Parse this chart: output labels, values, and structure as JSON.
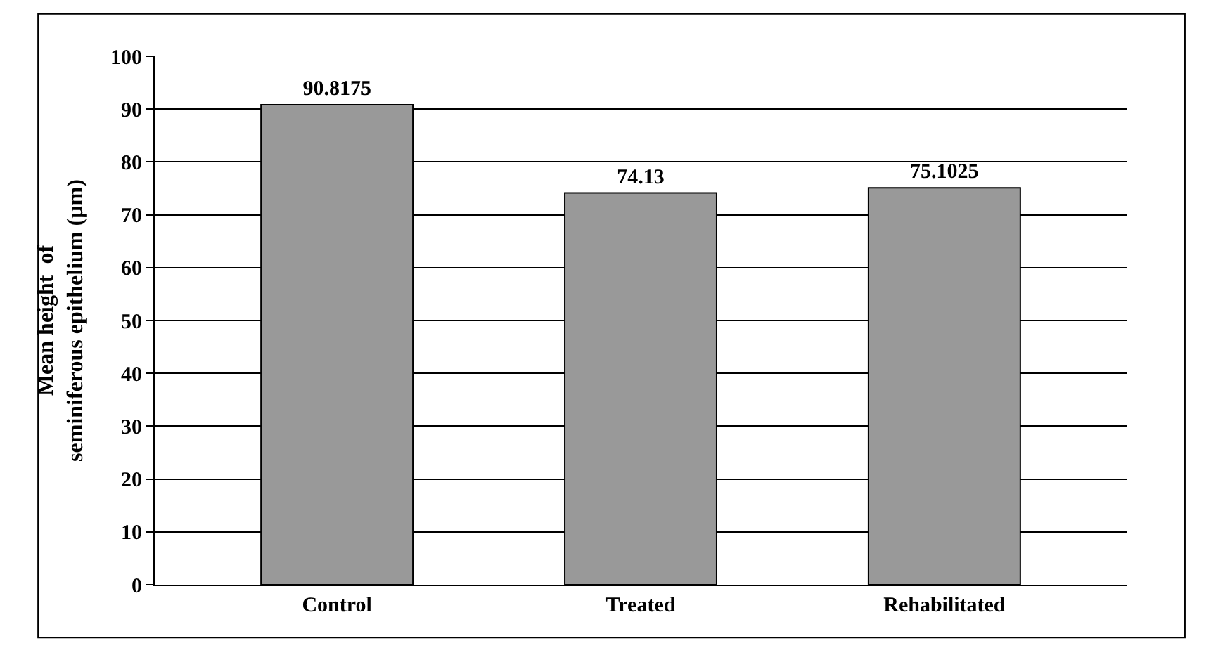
{
  "chart_data": {
    "type": "bar",
    "categories": [
      "Control",
      "Treated",
      "Rehabilitated"
    ],
    "values": [
      90.8175,
      74.13,
      75.1025
    ],
    "color": "#999999",
    "ylabel": "Mean height  of seminiferous epithelium (µm)",
    "ylim": [
      0,
      100
    ],
    "yticks": [
      0,
      10,
      20,
      30,
      40,
      50,
      60,
      70,
      80,
      90,
      100
    ],
    "grid": "y",
    "data_labels": true
  }
}
